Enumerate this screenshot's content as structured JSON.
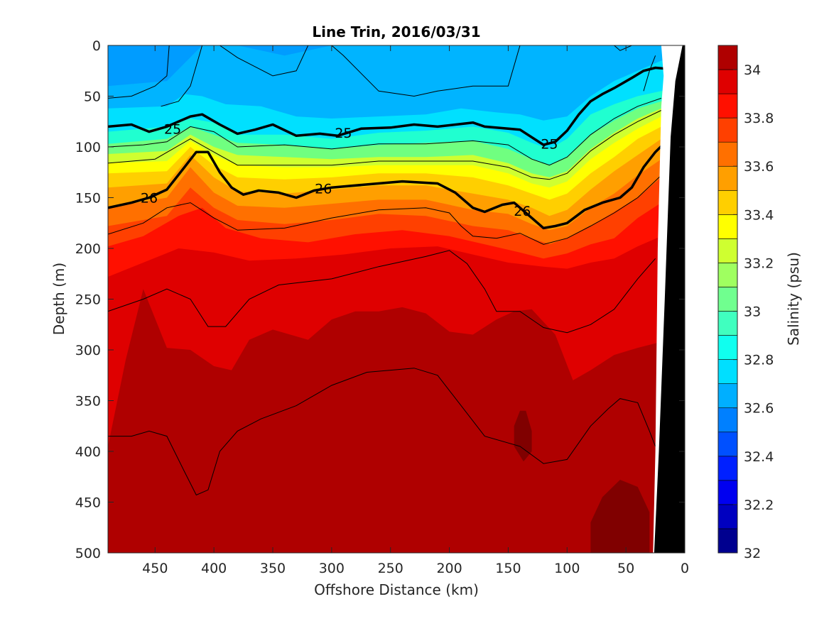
{
  "chart_data": {
    "type": "contour",
    "title": "Line Trin, 2016/03/31",
    "xlabel": "Offshore Distance (km)",
    "ylabel": "Depth (m)",
    "xlim": [
      490,
      0
    ],
    "ylim": [
      0,
      500
    ],
    "x_reversed": true,
    "y_reversed": true,
    "xticks": [
      "450",
      "400",
      "350",
      "300",
      "250",
      "200",
      "150",
      "100",
      "50",
      "0"
    ],
    "yticks": [
      "0",
      "50",
      "100",
      "150",
      "200",
      "250",
      "300",
      "350",
      "400",
      "450",
      "500"
    ],
    "colorbar": {
      "label": "Salinity (psu)",
      "range": [
        32,
        34.1
      ],
      "ticks": [
        "32",
        "32.2",
        "32.4",
        "32.6",
        "32.8",
        "33",
        "33.2",
        "33.4",
        "33.6",
        "33.8",
        "34"
      ]
    },
    "density_contours": [
      {
        "label": "25",
        "points": [
          [
            490,
            80
          ],
          [
            470,
            78
          ],
          [
            455,
            85
          ],
          [
            440,
            80
          ],
          [
            420,
            70
          ],
          [
            410,
            68
          ],
          [
            395,
            78
          ],
          [
            380,
            87
          ],
          [
            365,
            83
          ],
          [
            350,
            78
          ],
          [
            330,
            89
          ],
          [
            310,
            87
          ],
          [
            295,
            89
          ],
          [
            275,
            82
          ],
          [
            250,
            81
          ],
          [
            230,
            78
          ],
          [
            210,
            80
          ],
          [
            180,
            76
          ],
          [
            170,
            80
          ],
          [
            150,
            82
          ],
          [
            140,
            83
          ],
          [
            120,
            98
          ],
          [
            110,
            95
          ],
          [
            100,
            84
          ],
          [
            90,
            68
          ],
          [
            80,
            55
          ],
          [
            70,
            48
          ],
          [
            60,
            42
          ],
          [
            45,
            32
          ],
          [
            35,
            25
          ],
          [
            25,
            22
          ],
          [
            15,
            23
          ],
          [
            8,
            27
          ]
        ],
        "labels_at": [
          [
            435,
            82
          ],
          [
            290,
            86
          ],
          [
            115,
            97
          ]
        ]
      },
      {
        "label": "26",
        "points": [
          [
            490,
            160
          ],
          [
            470,
            155
          ],
          [
            455,
            150
          ],
          [
            440,
            142
          ],
          [
            425,
            120
          ],
          [
            415,
            105
          ],
          [
            405,
            105
          ],
          [
            395,
            125
          ],
          [
            385,
            140
          ],
          [
            375,
            147
          ],
          [
            362,
            143
          ],
          [
            345,
            145
          ],
          [
            330,
            150
          ],
          [
            315,
            143
          ],
          [
            300,
            140
          ],
          [
            270,
            137
          ],
          [
            240,
            134
          ],
          [
            210,
            136
          ],
          [
            195,
            145
          ],
          [
            180,
            160
          ],
          [
            170,
            164
          ],
          [
            155,
            157
          ],
          [
            145,
            155
          ],
          [
            130,
            170
          ],
          [
            120,
            180
          ],
          [
            110,
            178
          ],
          [
            100,
            175
          ],
          [
            85,
            162
          ],
          [
            70,
            155
          ],
          [
            55,
            150
          ],
          [
            45,
            140
          ],
          [
            35,
            120
          ],
          [
            25,
            105
          ],
          [
            18,
            97
          ]
        ],
        "labels_at": [
          [
            455,
            150
          ],
          [
            307,
            141
          ],
          [
            138,
            163
          ]
        ]
      }
    ],
    "salinity_zones": [
      {
        "value": "33.0",
        "depth_top": [
          [
            490,
            95
          ],
          [
            420,
            80
          ],
          [
            380,
            95
          ],
          [
            300,
            100
          ],
          [
            200,
            98
          ],
          [
            150,
            100
          ],
          [
            120,
            110
          ],
          [
            100,
            102
          ],
          [
            60,
            60
          ],
          [
            20,
            50
          ]
        ]
      },
      {
        "value": "33.4",
        "depth_top": [
          [
            490,
            120
          ],
          [
            420,
            95
          ],
          [
            380,
            115
          ],
          [
            300,
            118
          ],
          [
            200,
            118
          ],
          [
            150,
            130
          ],
          [
            120,
            140
          ],
          [
            100,
            130
          ],
          [
            60,
            90
          ],
          [
            20,
            65
          ]
        ]
      },
      {
        "value": "33.8",
        "depth_top": [
          [
            490,
            180
          ],
          [
            420,
            155
          ],
          [
            380,
            165
          ],
          [
            300,
            170
          ],
          [
            200,
            170
          ],
          [
            150,
            185
          ],
          [
            120,
            195
          ],
          [
            100,
            190
          ],
          [
            60,
            175
          ],
          [
            20,
            140
          ]
        ]
      },
      {
        "value": "34.0",
        "depth_top": [
          [
            490,
            250
          ],
          [
            420,
            240
          ],
          [
            380,
            250
          ],
          [
            300,
            240
          ],
          [
            200,
            235
          ],
          [
            150,
            240
          ],
          [
            120,
            250
          ],
          [
            100,
            255
          ],
          [
            60,
            260
          ],
          [
            20,
            250
          ]
        ]
      }
    ],
    "coastline_wedge": "black wedge of land/bathymetry between 0 and 25 km",
    "grid": false
  }
}
